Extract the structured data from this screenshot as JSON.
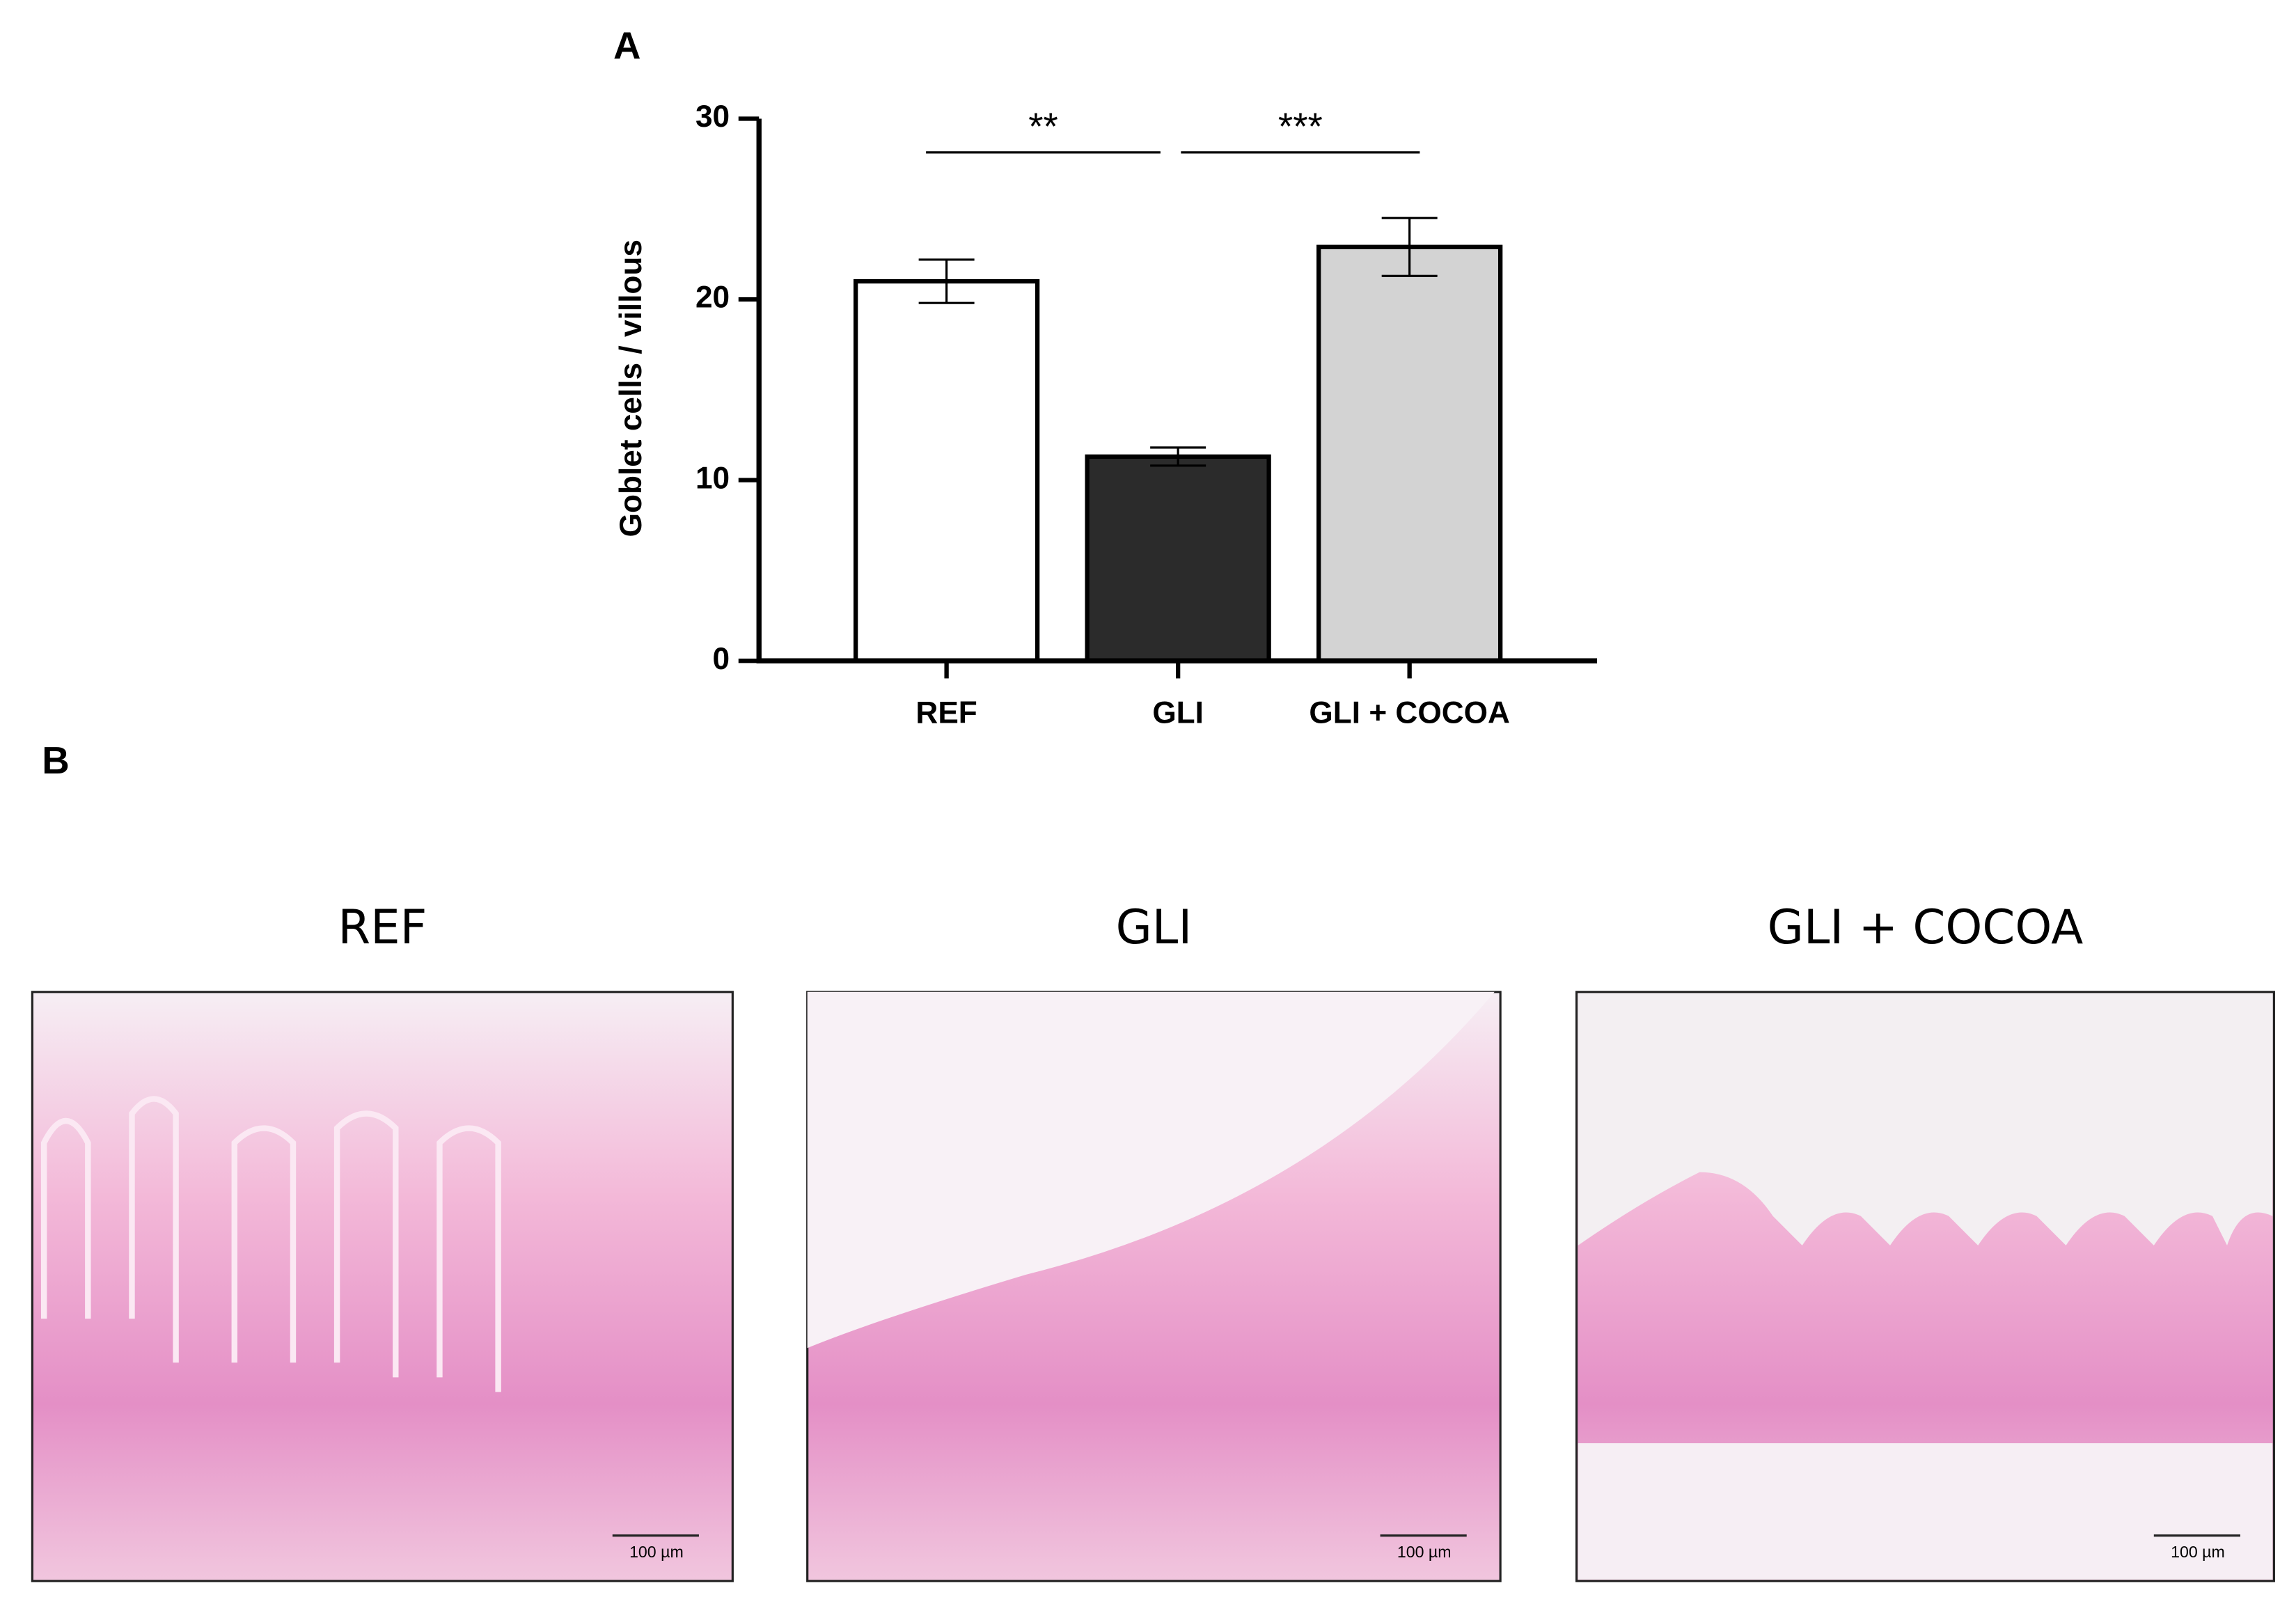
{
  "panel_labels": [
    "A",
    "B"
  ],
  "chart_data": {
    "type": "bar",
    "ylabel": "Goblet cells / villous",
    "categories": [
      "REF",
      "GLI",
      "GLI + COCOA"
    ],
    "values": [
      21,
      11.3,
      22.9
    ],
    "errors": [
      1.2,
      0.5,
      1.6
    ],
    "colors": [
      "#ffffff",
      "#2b2b2b",
      "#d3d3d3"
    ],
    "ylim": [
      0,
      30
    ],
    "yticks": [
      0,
      10,
      20,
      30
    ],
    "grid": false,
    "annotations": [
      {
        "text": "**"
      },
      {
        "text": "***"
      }
    ]
  },
  "micrographs": [
    {
      "title": "REF",
      "scale_bar": "100 µm"
    },
    {
      "title": "GLI",
      "scale_bar": "100 µm"
    },
    {
      "title": "GLI + COCOA",
      "scale_bar": "100 µm"
    }
  ]
}
